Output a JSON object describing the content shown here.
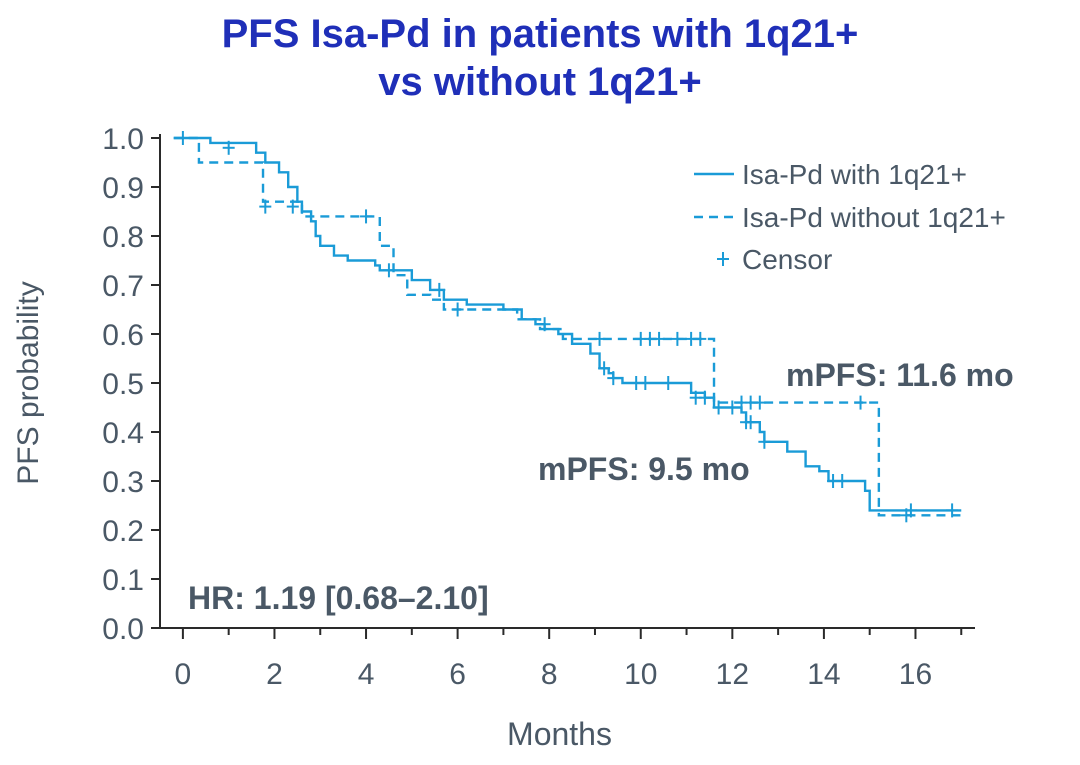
{
  "title_line1": "PFS Isa-Pd in patients with 1q21+",
  "title_line2": "vs without 1q21+",
  "chart_data": {
    "type": "line",
    "title": "PFS Isa-Pd in patients with 1q21+ vs without 1q21+",
    "xlabel": "Months",
    "ylabel": "PFS probability",
    "xlim": [
      -0.5,
      17.3
    ],
    "ylim": [
      0,
      1.0
    ],
    "xticks": [
      "0",
      "2",
      "4",
      "6",
      "8",
      "10",
      "12",
      "14",
      "16"
    ],
    "xtick_values": [
      0,
      2,
      4,
      6,
      8,
      10,
      12,
      14,
      16
    ],
    "yticks": [
      "0.0",
      "0.1",
      "0.2",
      "0.3",
      "0.4",
      "0.5",
      "0.6",
      "0.7",
      "0.8",
      "0.9",
      "1.0"
    ],
    "ytick_values": [
      0,
      0.1,
      0.2,
      0.3,
      0.4,
      0.5,
      0.6,
      0.7,
      0.8,
      0.9,
      1.0
    ],
    "grid": false,
    "legend_position": "top-right",
    "series": [
      {
        "name": "Isa-Pd with 1q21+",
        "style": "solid",
        "color": "#1a9bd7",
        "steps": [
          [
            -0.2,
            1.0
          ],
          [
            0.6,
            0.99
          ],
          [
            1.6,
            0.97
          ],
          [
            1.8,
            0.95
          ],
          [
            2.1,
            0.93
          ],
          [
            2.3,
            0.9
          ],
          [
            2.5,
            0.87
          ],
          [
            2.6,
            0.85
          ],
          [
            2.8,
            0.83
          ],
          [
            2.9,
            0.8
          ],
          [
            3.0,
            0.78
          ],
          [
            3.3,
            0.76
          ],
          [
            3.6,
            0.75
          ],
          [
            4.2,
            0.74
          ],
          [
            4.3,
            0.73
          ],
          [
            5.0,
            0.71
          ],
          [
            5.4,
            0.69
          ],
          [
            5.7,
            0.67
          ],
          [
            6.2,
            0.66
          ],
          [
            7.0,
            0.65
          ],
          [
            7.4,
            0.63
          ],
          [
            7.7,
            0.62
          ],
          [
            7.9,
            0.61
          ],
          [
            8.2,
            0.6
          ],
          [
            8.5,
            0.58
          ],
          [
            8.9,
            0.56
          ],
          [
            9.1,
            0.53
          ],
          [
            9.3,
            0.52
          ],
          [
            9.4,
            0.51
          ],
          [
            9.6,
            0.5
          ],
          [
            11.1,
            0.48
          ],
          [
            11.4,
            0.47
          ],
          [
            11.6,
            0.45
          ],
          [
            12.2,
            0.44
          ],
          [
            12.3,
            0.42
          ],
          [
            12.6,
            0.4
          ],
          [
            12.7,
            0.38
          ],
          [
            13.2,
            0.36
          ],
          [
            13.6,
            0.33
          ],
          [
            13.9,
            0.32
          ],
          [
            14.1,
            0.3
          ],
          [
            14.9,
            0.28
          ],
          [
            15.0,
            0.24
          ],
          [
            17.0,
            0.24
          ]
        ],
        "censors": [
          [
            0.0,
            1.0
          ],
          [
            1.0,
            0.98
          ],
          [
            2.4,
            0.86
          ],
          [
            4.5,
            0.73
          ],
          [
            5.6,
            0.69
          ],
          [
            7.9,
            0.62
          ],
          [
            9.2,
            0.53
          ],
          [
            9.4,
            0.51
          ],
          [
            9.9,
            0.5
          ],
          [
            10.1,
            0.5
          ],
          [
            10.6,
            0.5
          ],
          [
            11.2,
            0.47
          ],
          [
            11.4,
            0.47
          ],
          [
            11.7,
            0.45
          ],
          [
            12.0,
            0.45
          ],
          [
            12.3,
            0.42
          ],
          [
            12.4,
            0.42
          ],
          [
            12.7,
            0.38
          ],
          [
            14.2,
            0.3
          ],
          [
            14.4,
            0.3
          ],
          [
            15.9,
            0.24
          ],
          [
            16.8,
            0.24
          ]
        ]
      },
      {
        "name": "Isa-Pd without 1q21+",
        "style": "dashed",
        "color": "#1a9bd7",
        "steps": [
          [
            -0.2,
            1.0
          ],
          [
            0.35,
            0.95
          ],
          [
            1.3,
            0.95
          ],
          [
            1.75,
            0.87
          ],
          [
            2.6,
            0.84
          ],
          [
            4.3,
            0.78
          ],
          [
            4.6,
            0.72
          ],
          [
            4.9,
            0.68
          ],
          [
            5.4,
            0.67
          ],
          [
            5.7,
            0.65
          ],
          [
            7.3,
            0.63
          ],
          [
            7.8,
            0.61
          ],
          [
            8.3,
            0.59
          ],
          [
            11.6,
            0.55
          ],
          [
            11.6,
            0.46
          ],
          [
            15.2,
            0.23
          ],
          [
            17.0,
            0.23
          ]
        ],
        "censors": [
          [
            1.8,
            0.86
          ],
          [
            4.0,
            0.84
          ],
          [
            6.0,
            0.65
          ],
          [
            9.1,
            0.59
          ],
          [
            10.0,
            0.59
          ],
          [
            10.2,
            0.59
          ],
          [
            10.4,
            0.59
          ],
          [
            10.8,
            0.59
          ],
          [
            11.1,
            0.59
          ],
          [
            11.3,
            0.59
          ],
          [
            12.2,
            0.46
          ],
          [
            12.4,
            0.46
          ],
          [
            12.6,
            0.46
          ],
          [
            14.8,
            0.46
          ],
          [
            15.8,
            0.23
          ]
        ]
      }
    ],
    "legend": {
      "solid_label": "Isa-Pd with 1q21+",
      "dashed_label": "Isa-Pd without 1q21+",
      "censor_label": "Censor"
    },
    "annotations": {
      "mpfs_without": "mPFS: 11.6 mo",
      "mpfs_with": "mPFS: 9.5 mo",
      "hr": "HR: 1.19 [0.68–2.10]"
    },
    "colors": {
      "title": "#1f2fb8",
      "axis_text": "#4a5866",
      "axis_line": "#2a2a2a",
      "series": "#1a9bd7",
      "annotation": "#4a5866"
    }
  }
}
